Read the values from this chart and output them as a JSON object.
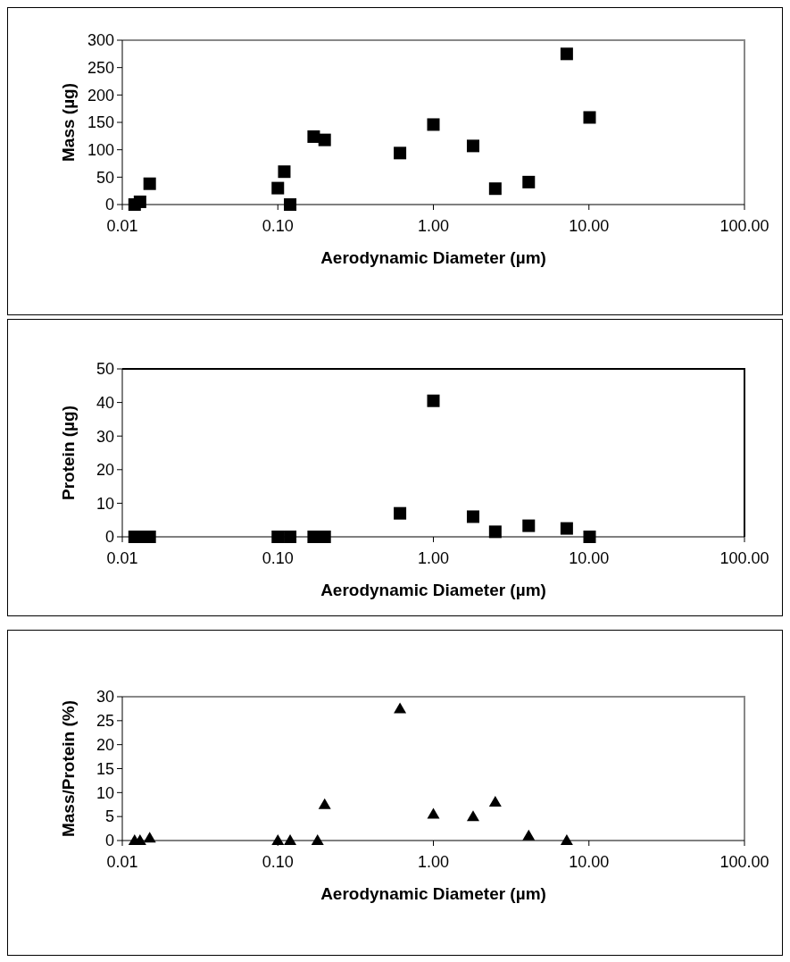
{
  "chart_data": [
    {
      "type": "scatter",
      "xlabel": "Aerodynamic Diameter (µm)",
      "ylabel": "Mass (µg)",
      "log": "x",
      "marker": "square",
      "xlim": [
        0.01,
        100
      ],
      "xticks": [
        {
          "value": 0.01,
          "label": "0.01"
        },
        {
          "value": 0.1,
          "label": "0.10"
        },
        {
          "value": 1,
          "label": "1.00"
        },
        {
          "value": 10,
          "label": "10.00"
        },
        {
          "value": 100,
          "label": "100.00"
        }
      ],
      "ylim": [
        0,
        300
      ],
      "yticks": [
        0,
        50,
        100,
        150,
        200,
        250,
        300
      ],
      "series": [
        {
          "color": "#000000",
          "x": [
            0.012,
            0.013,
            0.015,
            0.1,
            0.11,
            0.12,
            0.17,
            0.2,
            0.61,
            1.0,
            1.8,
            2.5,
            4.1,
            7.2,
            10.1
          ],
          "values": [
            0,
            5,
            38,
            30,
            60,
            0,
            124,
            118,
            94,
            146,
            107,
            29,
            41,
            275,
            159
          ]
        }
      ]
    },
    {
      "type": "scatter",
      "xlabel": "Aerodynamic Diameter (µm)",
      "ylabel": "Protein (µg)",
      "log": "x",
      "marker": "square",
      "xlim": [
        0.01,
        100
      ],
      "xticks": [
        {
          "value": 0.01,
          "label": "0.01"
        },
        {
          "value": 0.1,
          "label": "0.10"
        },
        {
          "value": 1,
          "label": "1.00"
        },
        {
          "value": 10,
          "label": "10.00"
        },
        {
          "value": 100,
          "label": "100.00"
        }
      ],
      "ylim": [
        0,
        50
      ],
      "yticks": [
        0,
        10,
        20,
        30,
        40,
        50
      ],
      "series": [
        {
          "color": "#000000",
          "x": [
            0.012,
            0.013,
            0.015,
            0.1,
            0.12,
            0.17,
            0.2,
            0.61,
            1.0,
            1.8,
            2.5,
            4.1,
            7.2,
            10.1
          ],
          "values": [
            0,
            0,
            0,
            0,
            0,
            0,
            0,
            7,
            40.5,
            6,
            1.5,
            3.3,
            2.5,
            0
          ]
        }
      ]
    },
    {
      "type": "scatter",
      "xlabel": "Aerodynamic Diameter (µm)",
      "ylabel": "Mass/Protein (%)",
      "log": "x",
      "marker": "triangle",
      "xlim": [
        0.01,
        100
      ],
      "xticks": [
        {
          "value": 0.01,
          "label": "0.01"
        },
        {
          "value": 0.1,
          "label": "0.10"
        },
        {
          "value": 1,
          "label": "1.00"
        },
        {
          "value": 10,
          "label": "10.00"
        },
        {
          "value": 100,
          "label": "100.00"
        }
      ],
      "ylim": [
        0,
        30
      ],
      "yticks": [
        0,
        5,
        10,
        15,
        20,
        25,
        30
      ],
      "series": [
        {
          "color": "#000000",
          "x": [
            0.012,
            0.013,
            0.015,
            0.1,
            0.12,
            0.18,
            0.2,
            0.61,
            1.0,
            1.8,
            2.5,
            4.1,
            7.2
          ],
          "values": [
            0,
            0,
            0.5,
            0,
            0,
            0,
            7.5,
            27.5,
            5.5,
            5,
            8,
            1,
            0
          ]
        }
      ]
    }
  ]
}
